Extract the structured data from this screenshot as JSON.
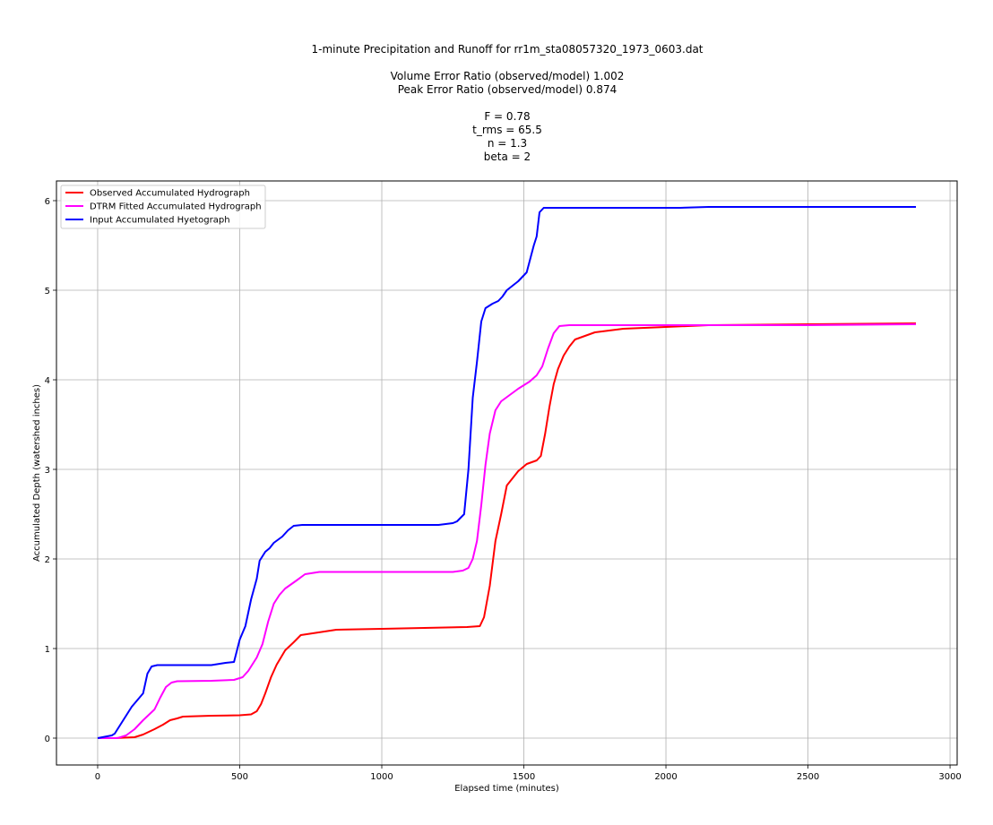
{
  "chart_data": {
    "type": "line",
    "title_lines": [
      "1-minute Precipitation and Runoff for rr1m_sta08057320_1973_0603.dat",
      "",
      "Volume Error Ratio (observed/model) 1.002",
      "Peak Error Ratio (observed/model) 0.874",
      "",
      "F = 0.78",
      "t_rms = 65.5",
      "n = 1.3",
      "beta = 2"
    ],
    "xlabel": "Elapsed time (minutes)",
    "ylabel": "Accumulated Depth (watershed inches)",
    "xlim": [
      -145,
      3025
    ],
    "ylim": [
      -0.3,
      6.22
    ],
    "xticks": [
      0,
      500,
      1000,
      1500,
      2000,
      2500,
      3000
    ],
    "yticks": [
      0,
      1,
      2,
      3,
      4,
      5,
      6
    ],
    "grid": true,
    "legend": "top-left",
    "series": [
      {
        "name": "Observed Accumulated Hydrograph",
        "color": "#ff0000",
        "points": [
          [
            0,
            0
          ],
          [
            60,
            0
          ],
          [
            130,
            0.01
          ],
          [
            160,
            0.04
          ],
          [
            200,
            0.1
          ],
          [
            230,
            0.15
          ],
          [
            255,
            0.2
          ],
          [
            280,
            0.22
          ],
          [
            300,
            0.24
          ],
          [
            400,
            0.25
          ],
          [
            500,
            0.255
          ],
          [
            540,
            0.265
          ],
          [
            560,
            0.3
          ],
          [
            575,
            0.38
          ],
          [
            590,
            0.5
          ],
          [
            610,
            0.68
          ],
          [
            630,
            0.82
          ],
          [
            660,
            0.98
          ],
          [
            690,
            1.07
          ],
          [
            715,
            1.15
          ],
          [
            840,
            1.21
          ],
          [
            1000,
            1.22
          ],
          [
            1300,
            1.24
          ],
          [
            1345,
            1.25
          ],
          [
            1360,
            1.35
          ],
          [
            1380,
            1.7
          ],
          [
            1400,
            2.2
          ],
          [
            1420,
            2.5
          ],
          [
            1440,
            2.82
          ],
          [
            1480,
            2.98
          ],
          [
            1510,
            3.06
          ],
          [
            1545,
            3.1
          ],
          [
            1560,
            3.15
          ],
          [
            1575,
            3.4
          ],
          [
            1590,
            3.7
          ],
          [
            1605,
            3.95
          ],
          [
            1620,
            4.12
          ],
          [
            1640,
            4.27
          ],
          [
            1660,
            4.37
          ],
          [
            1680,
            4.45
          ],
          [
            1750,
            4.53
          ],
          [
            1850,
            4.57
          ],
          [
            2000,
            4.59
          ],
          [
            2150,
            4.61
          ],
          [
            2500,
            4.62
          ],
          [
            2880,
            4.63
          ]
        ]
      },
      {
        "name": "DTRM Fitted Accumulated Hydrograph",
        "color": "#ff00ff",
        "points": [
          [
            0,
            0
          ],
          [
            70,
            0
          ],
          [
            100,
            0.03
          ],
          [
            130,
            0.1
          ],
          [
            160,
            0.2
          ],
          [
            200,
            0.32
          ],
          [
            220,
            0.45
          ],
          [
            240,
            0.57
          ],
          [
            260,
            0.62
          ],
          [
            280,
            0.635
          ],
          [
            400,
            0.64
          ],
          [
            480,
            0.65
          ],
          [
            510,
            0.68
          ],
          [
            530,
            0.75
          ],
          [
            560,
            0.9
          ],
          [
            580,
            1.05
          ],
          [
            600,
            1.3
          ],
          [
            620,
            1.5
          ],
          [
            640,
            1.6
          ],
          [
            660,
            1.67
          ],
          [
            700,
            1.76
          ],
          [
            730,
            1.83
          ],
          [
            780,
            1.855
          ],
          [
            1000,
            1.855
          ],
          [
            1250,
            1.855
          ],
          [
            1285,
            1.87
          ],
          [
            1305,
            1.9
          ],
          [
            1320,
            2.0
          ],
          [
            1335,
            2.2
          ],
          [
            1350,
            2.6
          ],
          [
            1365,
            3.05
          ],
          [
            1380,
            3.4
          ],
          [
            1400,
            3.66
          ],
          [
            1420,
            3.76
          ],
          [
            1450,
            3.83
          ],
          [
            1480,
            3.9
          ],
          [
            1520,
            3.98
          ],
          [
            1545,
            4.05
          ],
          [
            1565,
            4.15
          ],
          [
            1585,
            4.35
          ],
          [
            1605,
            4.52
          ],
          [
            1625,
            4.6
          ],
          [
            1660,
            4.61
          ],
          [
            2000,
            4.61
          ],
          [
            2500,
            4.61
          ],
          [
            2880,
            4.62
          ]
        ]
      },
      {
        "name": "Input Accumulated Hyetograph",
        "color": "#0000ff",
        "points": [
          [
            0,
            0
          ],
          [
            50,
            0.03
          ],
          [
            60,
            0.05
          ],
          [
            90,
            0.2
          ],
          [
            120,
            0.35
          ],
          [
            160,
            0.5
          ],
          [
            175,
            0.72
          ],
          [
            190,
            0.8
          ],
          [
            210,
            0.815
          ],
          [
            300,
            0.815
          ],
          [
            400,
            0.815
          ],
          [
            450,
            0.84
          ],
          [
            480,
            0.85
          ],
          [
            500,
            1.1
          ],
          [
            520,
            1.25
          ],
          [
            540,
            1.55
          ],
          [
            560,
            1.78
          ],
          [
            570,
            1.98
          ],
          [
            590,
            2.08
          ],
          [
            605,
            2.12
          ],
          [
            620,
            2.18
          ],
          [
            650,
            2.25
          ],
          [
            670,
            2.32
          ],
          [
            690,
            2.37
          ],
          [
            720,
            2.38
          ],
          [
            1000,
            2.38
          ],
          [
            1200,
            2.38
          ],
          [
            1250,
            2.4
          ],
          [
            1265,
            2.42
          ],
          [
            1290,
            2.5
          ],
          [
            1305,
            3.0
          ],
          [
            1320,
            3.8
          ],
          [
            1335,
            4.2
          ],
          [
            1350,
            4.65
          ],
          [
            1365,
            4.8
          ],
          [
            1390,
            4.85
          ],
          [
            1410,
            4.88
          ],
          [
            1425,
            4.93
          ],
          [
            1440,
            5.0
          ],
          [
            1480,
            5.1
          ],
          [
            1510,
            5.2
          ],
          [
            1535,
            5.5
          ],
          [
            1545,
            5.6
          ],
          [
            1555,
            5.87
          ],
          [
            1570,
            5.92
          ],
          [
            1650,
            5.92
          ],
          [
            2050,
            5.92
          ],
          [
            2150,
            5.93
          ],
          [
            2880,
            5.93
          ]
        ]
      }
    ]
  }
}
